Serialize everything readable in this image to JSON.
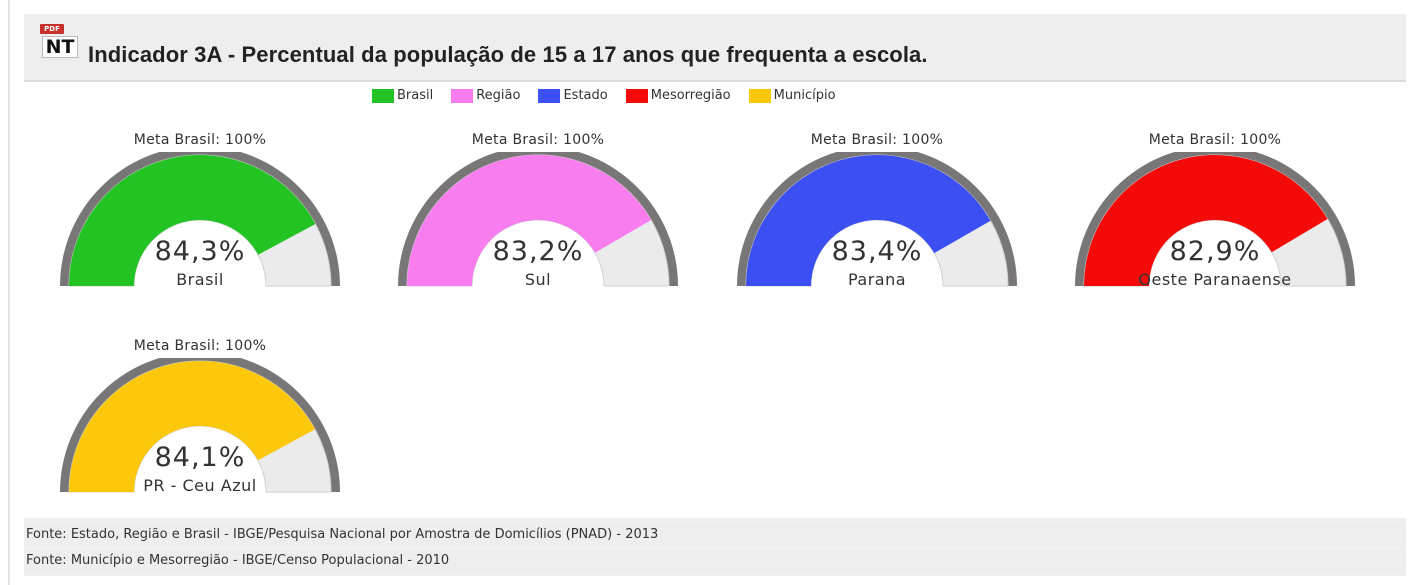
{
  "header": {
    "icon_badge": "PDF",
    "icon_text": "NT",
    "title": "Indicador 3A - Percentual da população de 15 a 17 anos que frequenta a escola."
  },
  "legend": [
    {
      "label": "Brasil",
      "color": "#22c322"
    },
    {
      "label": "Região",
      "color": "#f87ef0"
    },
    {
      "label": "Estado",
      "color": "#3b4ff2"
    },
    {
      "label": "Mesorregião",
      "color": "#f50a0a"
    },
    {
      "label": "Município",
      "color": "#fcc80c"
    }
  ],
  "chart_data": {
    "type": "gauge",
    "max": 100,
    "target_label": "Meta Brasil: 100%",
    "gauges": [
      {
        "name": "Brasil",
        "value": 84.3,
        "value_label": "84,3%",
        "color": "#22c322"
      },
      {
        "name": "Sul",
        "value": 83.2,
        "value_label": "83,2%",
        "color": "#f87ef0"
      },
      {
        "name": "Parana",
        "value": 83.4,
        "value_label": "83,4%",
        "color": "#3b4ff2"
      },
      {
        "name": "Oeste Paranaense",
        "value": 82.9,
        "value_label": "82,9%",
        "color": "#f50a0a"
      },
      {
        "name": "PR - Ceu Azul",
        "value": 84.1,
        "value_label": "84,1%",
        "color": "#fcc80c"
      }
    ]
  },
  "footer": {
    "line1": "Fonte: Estado, Região e Brasil - IBGE/Pesquisa Nacional por Amostra de Domicílios (PNAD) - 2013",
    "line2": "Fonte: Município e Mesorregião - IBGE/Censo Populacional - 2010"
  }
}
